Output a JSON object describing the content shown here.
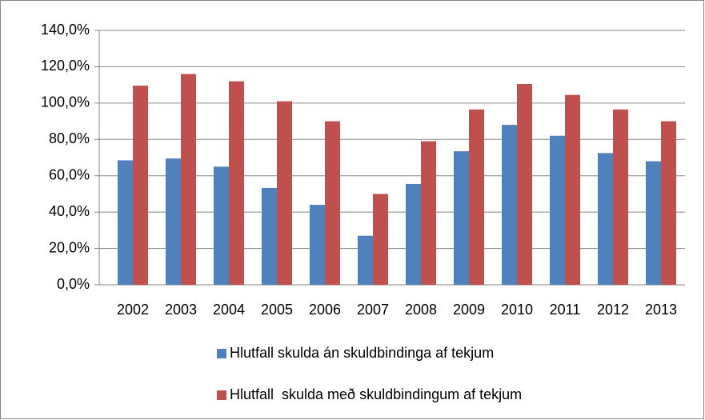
{
  "chart_data": {
    "type": "bar",
    "categories": [
      "2002",
      "2003",
      "2004",
      "2005",
      "2006",
      "2007",
      "2008",
      "2009",
      "2010",
      "2011",
      "2012",
      "2013"
    ],
    "series": [
      {
        "name": "Hlutfall skulda án skuldbindinga af tekjum",
        "color": "#4f81bd",
        "values": [
          68.5,
          69.5,
          65,
          53.3,
          44,
          27,
          55.5,
          73.5,
          88,
          82,
          72.5,
          68
        ]
      },
      {
        "name": "Hlutfall  skulda með skuldbindingum af tekjum",
        "color": "#c0504d",
        "values": [
          109.6,
          116,
          112,
          101,
          90,
          50,
          79,
          96.5,
          110.5,
          104.5,
          96.5,
          90
        ]
      }
    ],
    "ylim": [
      0,
      140
    ],
    "yticks": [
      {
        "value": 0,
        "label": "0,0%"
      },
      {
        "value": 20,
        "label": "20,0%"
      },
      {
        "value": 40,
        "label": "40,0%"
      },
      {
        "value": 60,
        "label": "60,0%"
      },
      {
        "value": 80,
        "label": "80,0%"
      },
      {
        "value": 100,
        "label": "100,0%"
      },
      {
        "value": 120,
        "label": "120,0%"
      },
      {
        "value": 140,
        "label": "140,0%"
      }
    ],
    "grid": true,
    "legend": "bottom"
  }
}
